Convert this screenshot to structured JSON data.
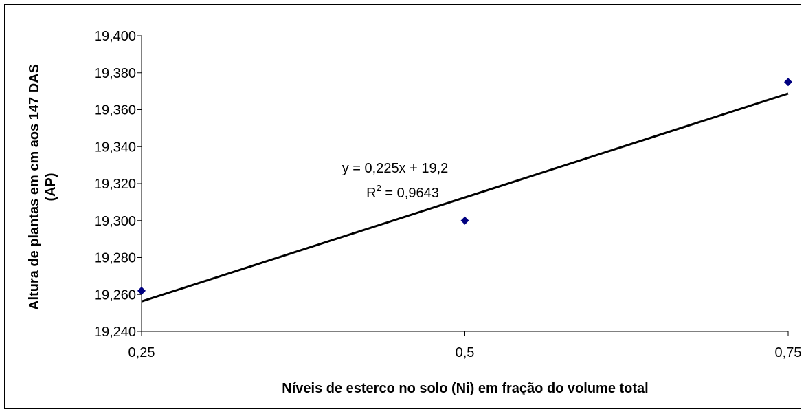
{
  "chart_data": {
    "type": "scatter",
    "title": "",
    "xlabel": "Níveis de esterco no solo (Ni) em fração do volume total",
    "ylabel_line1": "Altura de plantas em cm aos 147 DAS",
    "ylabel_line2": "(AP)",
    "xlim": [
      0.25,
      0.75
    ],
    "ylim": [
      19.24,
      19.4
    ],
    "x_ticks": [
      0.25,
      0.5,
      0.75
    ],
    "x_tick_labels": [
      "0,25",
      "0,5",
      "0,75"
    ],
    "y_ticks": [
      19.24,
      19.26,
      19.28,
      19.3,
      19.32,
      19.34,
      19.36,
      19.38,
      19.4
    ],
    "y_tick_labels": [
      "19,240",
      "19,260",
      "19,280",
      "19,300",
      "19,320",
      "19,340",
      "19,360",
      "19,380",
      "19,400"
    ],
    "series": [
      {
        "x": [
          0.25,
          0.5,
          0.75
        ],
        "y": [
          19.262,
          19.3,
          19.375
        ],
        "marker": "diamond",
        "color": "#000080"
      }
    ],
    "trendline": {
      "slope": 0.225,
      "intercept": 19.2,
      "x_range": [
        0.25,
        0.75
      ],
      "color": "#000000"
    },
    "annotations": {
      "equation": "y = 0,225x + 19,2",
      "r2_prefix": "R",
      "r2_sup": "2",
      "r2_value": " = 0,9643"
    },
    "grid": false,
    "legend": "none"
  }
}
